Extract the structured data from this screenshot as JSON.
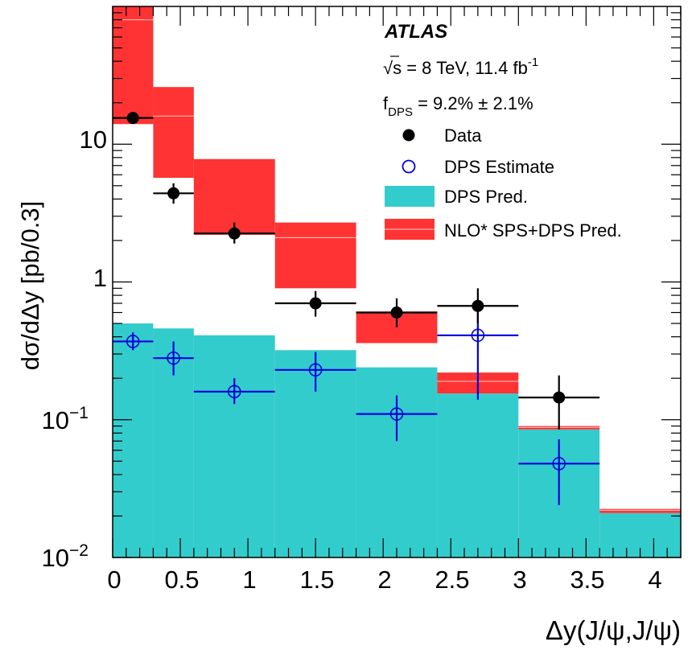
{
  "chart_data": {
    "type": "bar",
    "y_scale": "log",
    "xlim": [
      0,
      4.2
    ],
    "ylim": [
      0.01,
      100
    ],
    "xlabel": "Δy(J/ψ,J/ψ)",
    "ylabel": "dσ/dΔy [pb/0.3]",
    "x_ticks": [
      "0",
      "0.5",
      "1",
      "1.5",
      "2",
      "2.5",
      "3",
      "3.5",
      "4"
    ],
    "y_ticks": [
      {
        "base": "10",
        "exp": "−2"
      },
      {
        "base": "10",
        "exp": "−1"
      },
      {
        "base": "1",
        "exp": ""
      },
      {
        "base": "10",
        "exp": ""
      }
    ],
    "bin_edges": [
      0,
      0.3,
      0.6,
      1.2,
      1.8,
      2.4,
      3.0,
      3.6,
      4.2
    ],
    "series": [
      {
        "name": "Data",
        "style": "filled-marker",
        "points": [
          {
            "x": 0.15,
            "y": 15.5,
            "xerr": 0.15,
            "ylo": 14.5,
            "yhi": 16.5
          },
          {
            "x": 0.45,
            "y": 4.4,
            "xerr": 0.15,
            "ylo": 3.7,
            "yhi": 5.2
          },
          {
            "x": 0.9,
            "y": 2.25,
            "xerr": 0.3,
            "ylo": 1.9,
            "yhi": 2.7
          },
          {
            "x": 1.5,
            "y": 0.7,
            "xerr": 0.3,
            "ylo": 0.56,
            "yhi": 0.86
          },
          {
            "x": 2.1,
            "y": 0.6,
            "xerr": 0.3,
            "ylo": 0.47,
            "yhi": 0.76
          },
          {
            "x": 2.7,
            "y": 0.67,
            "xerr": 0.3,
            "ylo": 0.5,
            "yhi": 0.9
          },
          {
            "x": 3.3,
            "y": 0.145,
            "xerr": 0.3,
            "ylo": 0.085,
            "yhi": 0.21
          }
        ]
      },
      {
        "name": "DPS Estimate",
        "style": "open-marker",
        "points": [
          {
            "x": 0.15,
            "y": 0.37,
            "xerr": 0.15,
            "ylo": 0.32,
            "yhi": 0.43
          },
          {
            "x": 0.45,
            "y": 0.28,
            "xerr": 0.15,
            "ylo": 0.21,
            "yhi": 0.37
          },
          {
            "x": 0.9,
            "y": 0.16,
            "xerr": 0.3,
            "ylo": 0.13,
            "yhi": 0.2
          },
          {
            "x": 1.5,
            "y": 0.23,
            "xerr": 0.3,
            "ylo": 0.16,
            "yhi": 0.31
          },
          {
            "x": 2.1,
            "y": 0.11,
            "xerr": 0.3,
            "ylo": 0.07,
            "yhi": 0.15
          },
          {
            "x": 2.7,
            "y": 0.41,
            "xerr": 0.3,
            "ylo": 0.14,
            "yhi": 0.68
          },
          {
            "x": 3.3,
            "y": 0.048,
            "xerr": 0.3,
            "ylo": 0.024,
            "yhi": 0.072
          }
        ]
      },
      {
        "name": "DPS Pred.",
        "style": "filled-histogram",
        "color": "#33cccc",
        "values": [
          0.5,
          0.46,
          0.41,
          0.32,
          0.24,
          0.155,
          0.085,
          0.021
        ]
      },
      {
        "name": "NLO* SPS+DPS Pred.",
        "style": "band",
        "color": "#ff3333",
        "central": [
          80,
          16,
          2.2,
          2.1,
          0.6,
          0.19,
          0.088,
          0.022
        ],
        "low": [
          14,
          5.7,
          2.2,
          0.9,
          0.36,
          0.155,
          0.085,
          0.021
        ],
        "high": [
          100,
          26,
          7.8,
          2.7,
          0.61,
          0.22,
          0.09,
          0.0225
        ]
      }
    ],
    "annotations": {
      "experiment": "ATLAS",
      "energy_sqrt": "√",
      "energy_rest": "s = 8 TeV, 11.4 fb",
      "energy_sup": "-1",
      "fdps_f": "f",
      "fdps_sub": "DPS",
      "fdps_rest": " = 9.2% ± 2.1%"
    },
    "legend_position": "top-right",
    "colors": {
      "data": "#000000",
      "dps_estimate": "#0000dd",
      "dps_pred": "#33cccc",
      "nlo_band": "#ff3333"
    }
  }
}
